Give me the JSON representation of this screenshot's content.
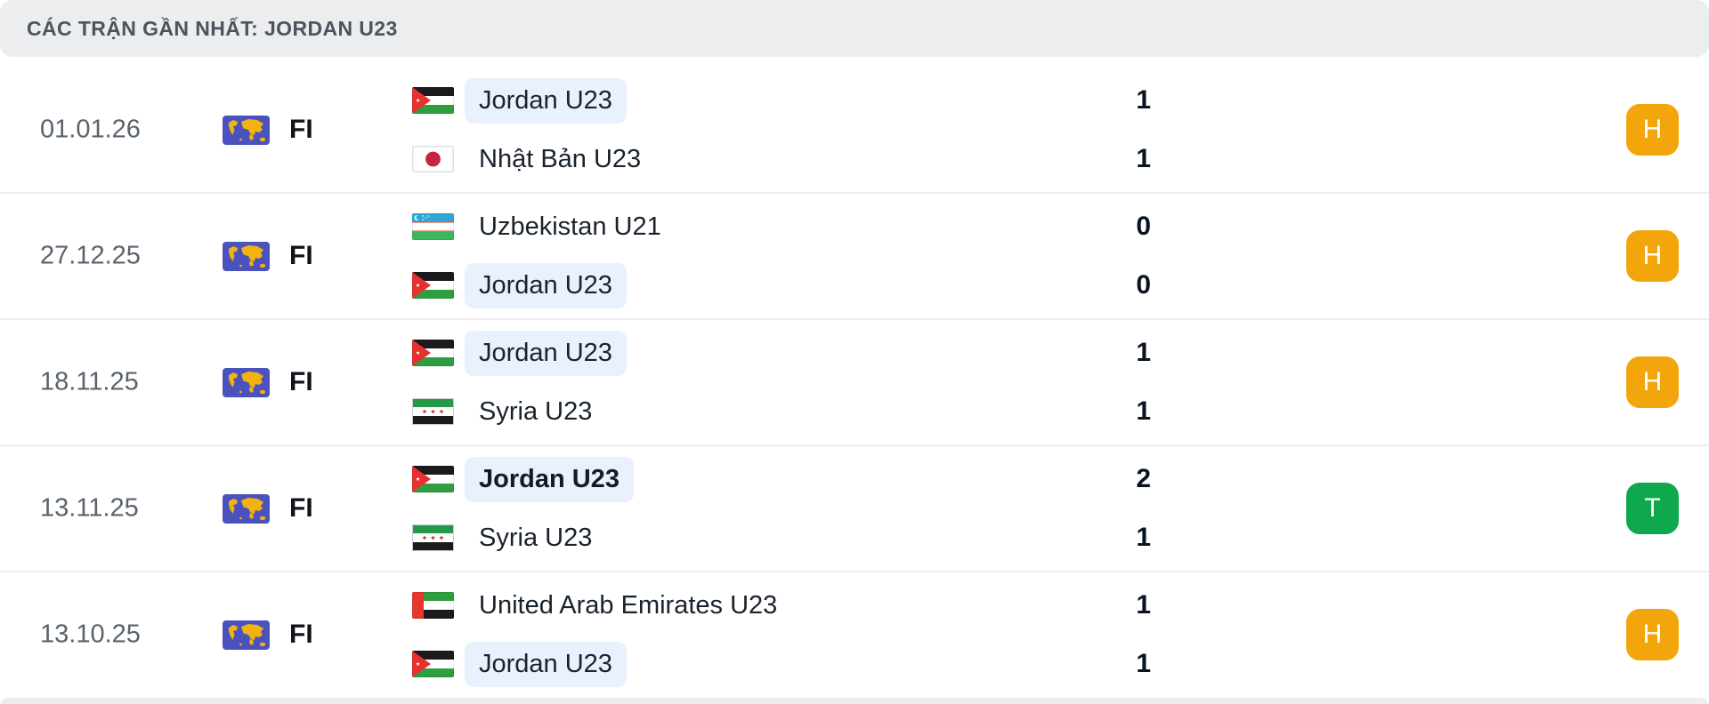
{
  "panel": {
    "title": "CÁC TRẬN GẦN NHẤT: JORDAN U23"
  },
  "colors": {
    "win": "#0FA84C",
    "draw": "#F2A60C",
    "highlight": "#E8F1FD",
    "header_bg": "#ECEDEF",
    "competition_icon_bg": "#4A52BE",
    "competition_icon_map": "#F2B310"
  },
  "matches": [
    {
      "date": "01.01.26",
      "competition": "FI",
      "teams": [
        {
          "name": "Jordan U23",
          "flag": "jordan",
          "highlight": true,
          "bold": false,
          "score": "1",
          "score_bold": false
        },
        {
          "name": "Nhật Bản U23",
          "flag": "japan",
          "highlight": false,
          "bold": false,
          "score": "1",
          "score_bold": false
        }
      ],
      "result": "H",
      "result_type": "draw"
    },
    {
      "date": "27.12.25",
      "competition": "FI",
      "teams": [
        {
          "name": "Uzbekistan U21",
          "flag": "uzbekistan",
          "highlight": false,
          "bold": false,
          "score": "0",
          "score_bold": false
        },
        {
          "name": "Jordan U23",
          "flag": "jordan",
          "highlight": true,
          "bold": false,
          "score": "0",
          "score_bold": false
        }
      ],
      "result": "H",
      "result_type": "draw"
    },
    {
      "date": "18.11.25",
      "competition": "FI",
      "teams": [
        {
          "name": "Jordan U23",
          "flag": "jordan",
          "highlight": true,
          "bold": false,
          "score": "1",
          "score_bold": false
        },
        {
          "name": "Syria U23",
          "flag": "syria",
          "highlight": false,
          "bold": false,
          "score": "1",
          "score_bold": false
        }
      ],
      "result": "H",
      "result_type": "draw"
    },
    {
      "date": "13.11.25",
      "competition": "FI",
      "teams": [
        {
          "name": "Jordan U23",
          "flag": "jordan",
          "highlight": true,
          "bold": true,
          "score": "2",
          "score_bold": true
        },
        {
          "name": "Syria U23",
          "flag": "syria",
          "highlight": false,
          "bold": false,
          "score": "1",
          "score_bold": false
        }
      ],
      "result": "T",
      "result_type": "win"
    },
    {
      "date": "13.10.25",
      "competition": "FI",
      "teams": [
        {
          "name": "United Arab Emirates U23",
          "flag": "uae",
          "highlight": false,
          "bold": false,
          "score": "1",
          "score_bold": false
        },
        {
          "name": "Jordan U23",
          "flag": "jordan",
          "highlight": true,
          "bold": false,
          "score": "1",
          "score_bold": false
        }
      ],
      "result": "H",
      "result_type": "draw"
    }
  ]
}
